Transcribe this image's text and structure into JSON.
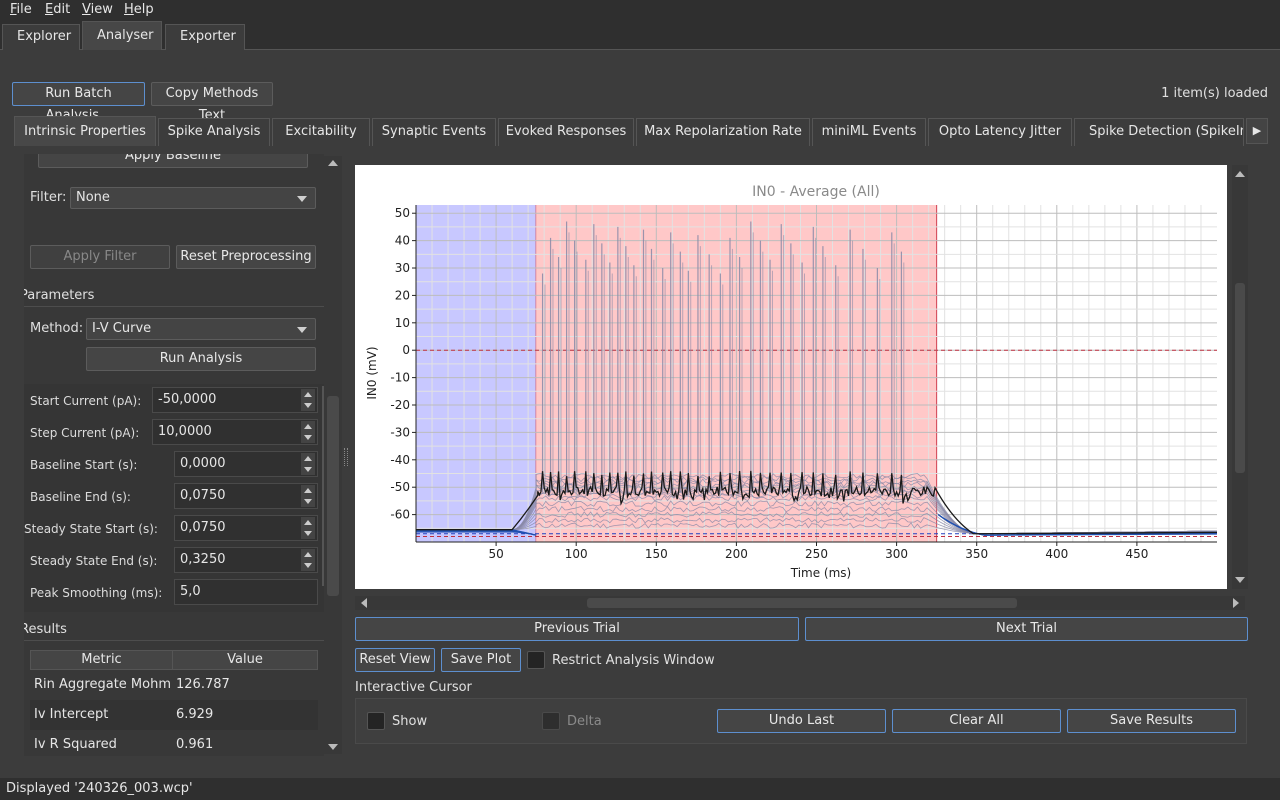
{
  "menu": [
    {
      "label": "File",
      "u": "F",
      "rest": "ile"
    },
    {
      "label": "Edit",
      "u": "E",
      "rest": "dit"
    },
    {
      "label": "View",
      "u": "V",
      "rest": "iew"
    },
    {
      "label": "Help",
      "u": "H",
      "rest": "elp"
    }
  ],
  "main_tabs": [
    "Explorer",
    "Analyser",
    "Exporter"
  ],
  "toolbar": {
    "run_batch": "Run Batch Analysis...",
    "copy_methods": "Copy Methods Text",
    "items_loaded": "1 item(s) loaded"
  },
  "sub_tabs": [
    "Intrinsic Properties",
    "Spike Analysis",
    "Excitability",
    "Synaptic Events",
    "Evoked Responses",
    "Max Repolarization Rate",
    "miniML Events",
    "Opto Latency Jitter",
    "Spike Detection (SpikeInt"
  ],
  "left": {
    "apply_baseline": "Apply Baseline",
    "filter_label": "Filter:",
    "filter_value": "None",
    "apply_filter": "Apply Filter",
    "reset_preprocessing": "Reset Preprocessing",
    "parameters_header": "Parameters",
    "method_label": "Method:",
    "method_value": "I-V Curve",
    "run_analysis": "Run Analysis",
    "params": [
      {
        "label": "Start Current (pA):",
        "value": "-50,0000"
      },
      {
        "label": "Step Current (pA):",
        "value": "10,0000"
      },
      {
        "label": "Baseline Start (s):",
        "value": "0,0000"
      },
      {
        "label": "Baseline End (s):",
        "value": "0,0750"
      },
      {
        "label": "Steady State Start (s):",
        "value": "0,0750"
      },
      {
        "label": "Steady State End (s):",
        "value": "0,3250"
      },
      {
        "label": "Peak Smoothing (ms):",
        "value": "5,0"
      }
    ],
    "results_header": "Results",
    "results_columns": [
      "Metric",
      "Value"
    ],
    "results_rows": [
      {
        "metric": "Rin Aggregate Mohm",
        "value": "126.787"
      },
      {
        "metric": "Iv Intercept",
        "value": "6.929"
      },
      {
        "metric": "Iv R Squared",
        "value": "0.961"
      }
    ]
  },
  "chart_data": {
    "type": "line",
    "title": "IN0 - Average (All)",
    "xlabel": "Time (ms)",
    "ylabel": "IN0 (mV)",
    "xlim": [
      0,
      500
    ],
    "ylim": [
      -70,
      53
    ],
    "x_ticks": [
      50,
      100,
      150,
      200,
      250,
      300,
      350,
      400,
      450
    ],
    "y_ticks": [
      50,
      40,
      30,
      20,
      10,
      0,
      -10,
      -20,
      -30,
      -40,
      -50,
      -60
    ],
    "grid": true,
    "regions": [
      {
        "name": "baseline",
        "x": [
          0,
          75
        ],
        "color": "#c8c8ff"
      },
      {
        "name": "steady-state",
        "x": [
          75,
          325
        ],
        "color": "#ffc8c8"
      }
    ],
    "hlines": [
      {
        "y": 0,
        "color": "#c03040"
      },
      {
        "y": -67,
        "color": "#2040c0"
      },
      {
        "y": -68,
        "color": "#c03040"
      }
    ],
    "trace_color": "#1a1a1a",
    "sweep_color": "#8a8aa8",
    "baseline_mv": -65.5,
    "spike_times_ms": [
      79,
      84,
      89,
      94,
      99,
      106,
      111,
      116,
      121,
      126,
      131,
      136,
      142,
      147,
      154,
      159,
      165,
      170,
      176,
      183,
      190,
      196,
      202,
      209,
      215,
      221,
      228,
      234,
      241,
      248,
      254,
      262,
      271,
      279,
      288,
      297,
      303
    ]
  },
  "plot_controls": {
    "previous_trial": "Previous Trial",
    "next_trial": "Next Trial",
    "reset_view": "Reset View",
    "save_plot": "Save Plot",
    "restrict_window": "Restrict Analysis Window"
  },
  "cursor": {
    "header": "Interactive Cursor",
    "show": "Show",
    "delta": "Delta",
    "undo_last": "Undo Last",
    "clear_all": "Clear All",
    "save_results": "Save Results"
  },
  "status": "Displayed '240326_003.wcp'"
}
